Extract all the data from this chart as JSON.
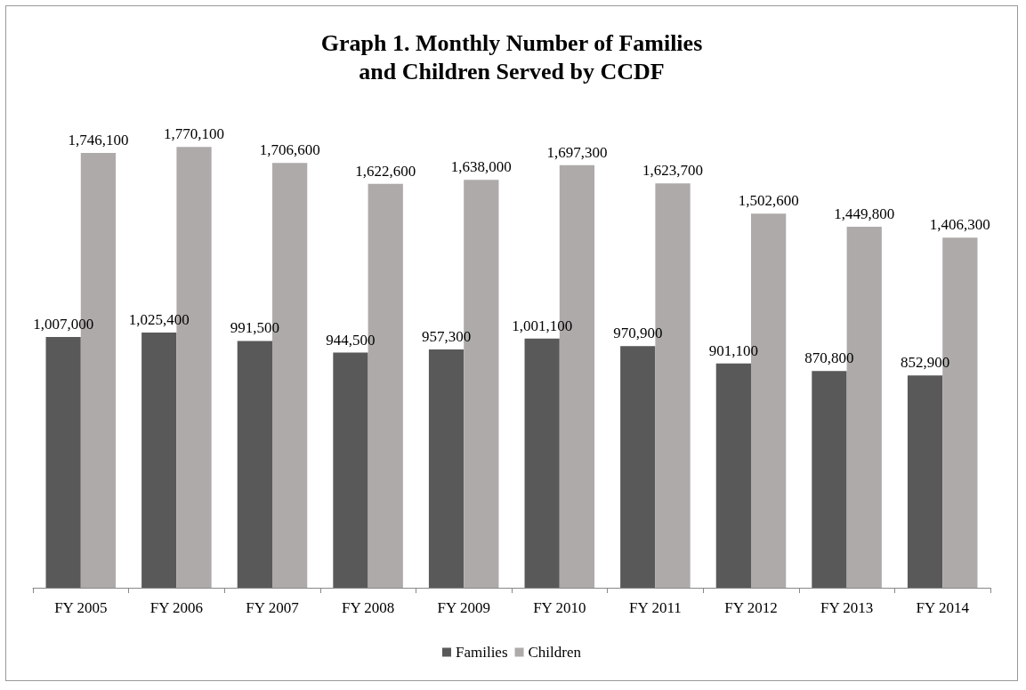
{
  "chart_data": {
    "type": "bar",
    "title": "Graph 1. Monthly Number of Families\nand Children Served by CCDF",
    "categories": [
      "FY 2005",
      "FY 2006",
      "FY 2007",
      "FY 2008",
      "FY 2009",
      "FY 2010",
      "FY 2011",
      "FY 2012",
      "FY 2013",
      "FY 2014"
    ],
    "series": [
      {
        "name": "Families",
        "color": "#595959",
        "values": [
          1007000,
          1025400,
          991500,
          944500,
          957300,
          1001100,
          970900,
          901100,
          870800,
          852900
        ],
        "value_labels": [
          "1,007,000",
          "1,025,400",
          "991,500",
          "944,500",
          "957,300",
          "1,001,100",
          "970,900",
          "901,100",
          "870,800",
          "852,900"
        ]
      },
      {
        "name": "Children",
        "color": "#aeaaaa",
        "values": [
          1746100,
          1770100,
          1706600,
          1622600,
          1638000,
          1697300,
          1623700,
          1502600,
          1449800,
          1406300
        ],
        "value_labels": [
          "1,746,100",
          "1,770,100",
          "1,706,600",
          "1,622,600",
          "1,638,000",
          "1,697,300",
          "1,623,700",
          "1,502,600",
          "1,449,800",
          "1,406,300"
        ]
      }
    ],
    "legend": "bottom"
  }
}
